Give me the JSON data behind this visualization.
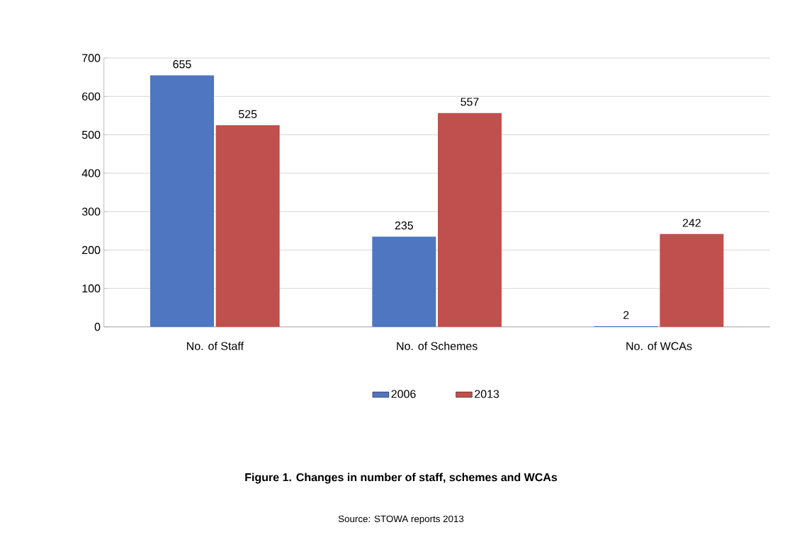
{
  "chart_data": {
    "type": "bar",
    "title": "Figure 1. Changes in number of staff, schemes and WCAs",
    "categories": [
      "No. of Staff",
      "No. of Schemes",
      "No. of WCAs"
    ],
    "series": [
      {
        "name": "2006",
        "color": "#4f76c0",
        "values": [
          655,
          235,
          2
        ]
      },
      {
        "name": "2013",
        "color": "#c0504d",
        "values": [
          525,
          557,
          242
        ]
      }
    ],
    "ylim": [
      0,
      700
    ],
    "yticks": [
      0,
      100,
      200,
      300,
      400,
      500,
      600,
      700
    ],
    "grid": "y",
    "legend": "bottom",
    "data_labels": true,
    "annotations": [
      "Source: STOWA reports 2013"
    ]
  }
}
